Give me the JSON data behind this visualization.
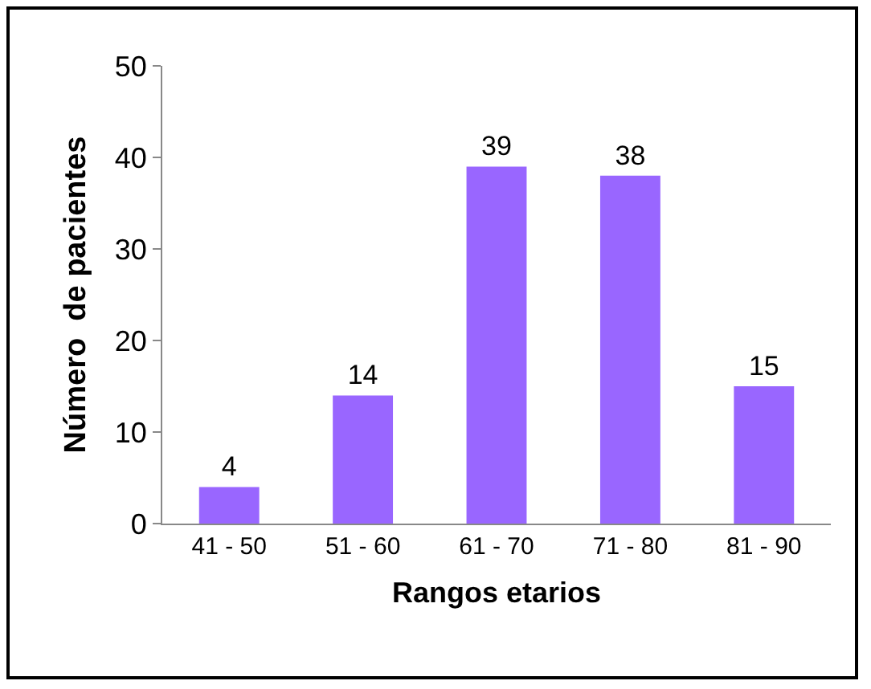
{
  "chart_data": {
    "type": "bar",
    "categories": [
      "41 - 50",
      "51 - 60",
      "61 - 70",
      "71 - 80",
      "81 - 90"
    ],
    "values": [
      4,
      14,
      39,
      38,
      15
    ],
    "color": "#9966ff",
    "xlabel": "Rangos etarios",
    "ylabel": "Número  de pacientes",
    "ylim": [
      0,
      50
    ],
    "yticks": [
      0,
      10,
      20,
      30,
      40,
      50
    ],
    "grid": false,
    "legend": false,
    "data_labels": true
  }
}
